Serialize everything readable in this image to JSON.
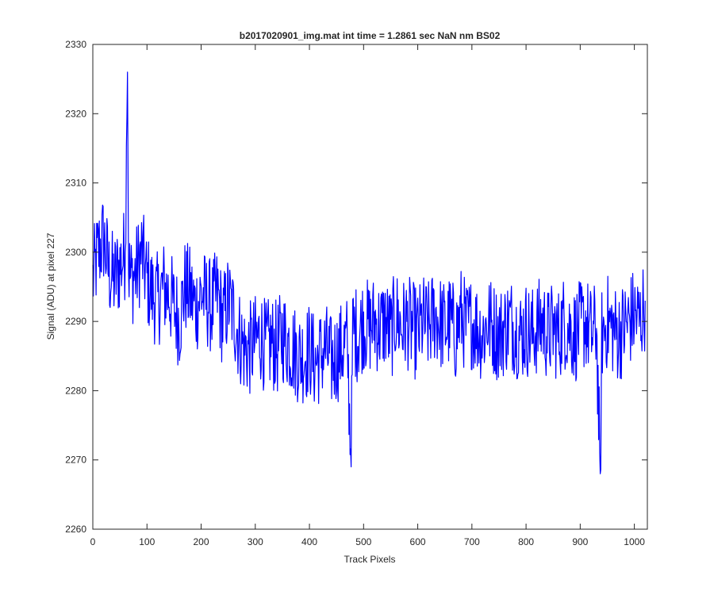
{
  "chart_data": {
    "type": "line",
    "title": "b2017020901_img.mat int time = 1.2861 sec  NaN nm BS02",
    "xlabel": "Track Pixels",
    "ylabel": "Signal (ADU) at pixel 227",
    "xlim": [
      0,
      1024
    ],
    "ylim": [
      2260,
      2330
    ],
    "xticks": [
      0,
      100,
      200,
      300,
      400,
      500,
      600,
      700,
      800,
      900,
      1000
    ],
    "yticks": [
      2260,
      2270,
      2280,
      2290,
      2300,
      2310,
      2320,
      2330
    ],
    "grid": false,
    "legend": "none",
    "series": [
      {
        "color": "#0000ff",
        "x": [
          0,
          10,
          20,
          30,
          40,
          50,
          60,
          64,
          66,
          70,
          80,
          90,
          100,
          110,
          120,
          130,
          140,
          150,
          160,
          170,
          180,
          190,
          200,
          210,
          220,
          230,
          240,
          250,
          260,
          270,
          280,
          290,
          300,
          310,
          320,
          330,
          340,
          350,
          360,
          370,
          380,
          390,
          400,
          410,
          420,
          430,
          440,
          450,
          460,
          470,
          477,
          480,
          490,
          500,
          510,
          520,
          530,
          540,
          550,
          560,
          570,
          580,
          590,
          600,
          610,
          620,
          630,
          640,
          650,
          660,
          670,
          680,
          690,
          700,
          710,
          720,
          730,
          740,
          750,
          760,
          770,
          780,
          790,
          800,
          810,
          820,
          830,
          840,
          850,
          860,
          870,
          880,
          890,
          900,
          910,
          920,
          930,
          937,
          940,
          950,
          960,
          970,
          980,
          990,
          1000,
          1010,
          1020
        ],
        "y": [
          2296,
          2300,
          2302,
          2297,
          2296,
          2298,
          2300,
          2326,
          2298,
          2296,
          2297,
          2300,
          2296,
          2294,
          2293,
          2295,
          2294,
          2292,
          2290,
          2295,
          2294,
          2292,
          2294,
          2293,
          2292,
          2294,
          2290,
          2293,
          2291,
          2288,
          2286,
          2286,
          2287,
          2288,
          2286,
          2287,
          2286,
          2288,
          2287,
          2286,
          2285,
          2285,
          2286,
          2284,
          2285,
          2286,
          2284,
          2285,
          2286,
          2287,
          2269,
          2289,
          2288,
          2290,
          2289,
          2290,
          2289,
          2290,
          2288,
          2291,
          2289,
          2290,
          2289,
          2288,
          2290,
          2289,
          2291,
          2290,
          2289,
          2290,
          2288,
          2291,
          2289,
          2290,
          2289,
          2288,
          2290,
          2289,
          2288,
          2289,
          2290,
          2289,
          2288,
          2289,
          2288,
          2289,
          2290,
          2288,
          2289,
          2288,
          2290,
          2289,
          2288,
          2289,
          2290,
          2288,
          2289,
          2268,
          2288,
          2290,
          2289,
          2288,
          2289,
          2290,
          2291,
          2290,
          2293
        ]
      }
    ]
  }
}
